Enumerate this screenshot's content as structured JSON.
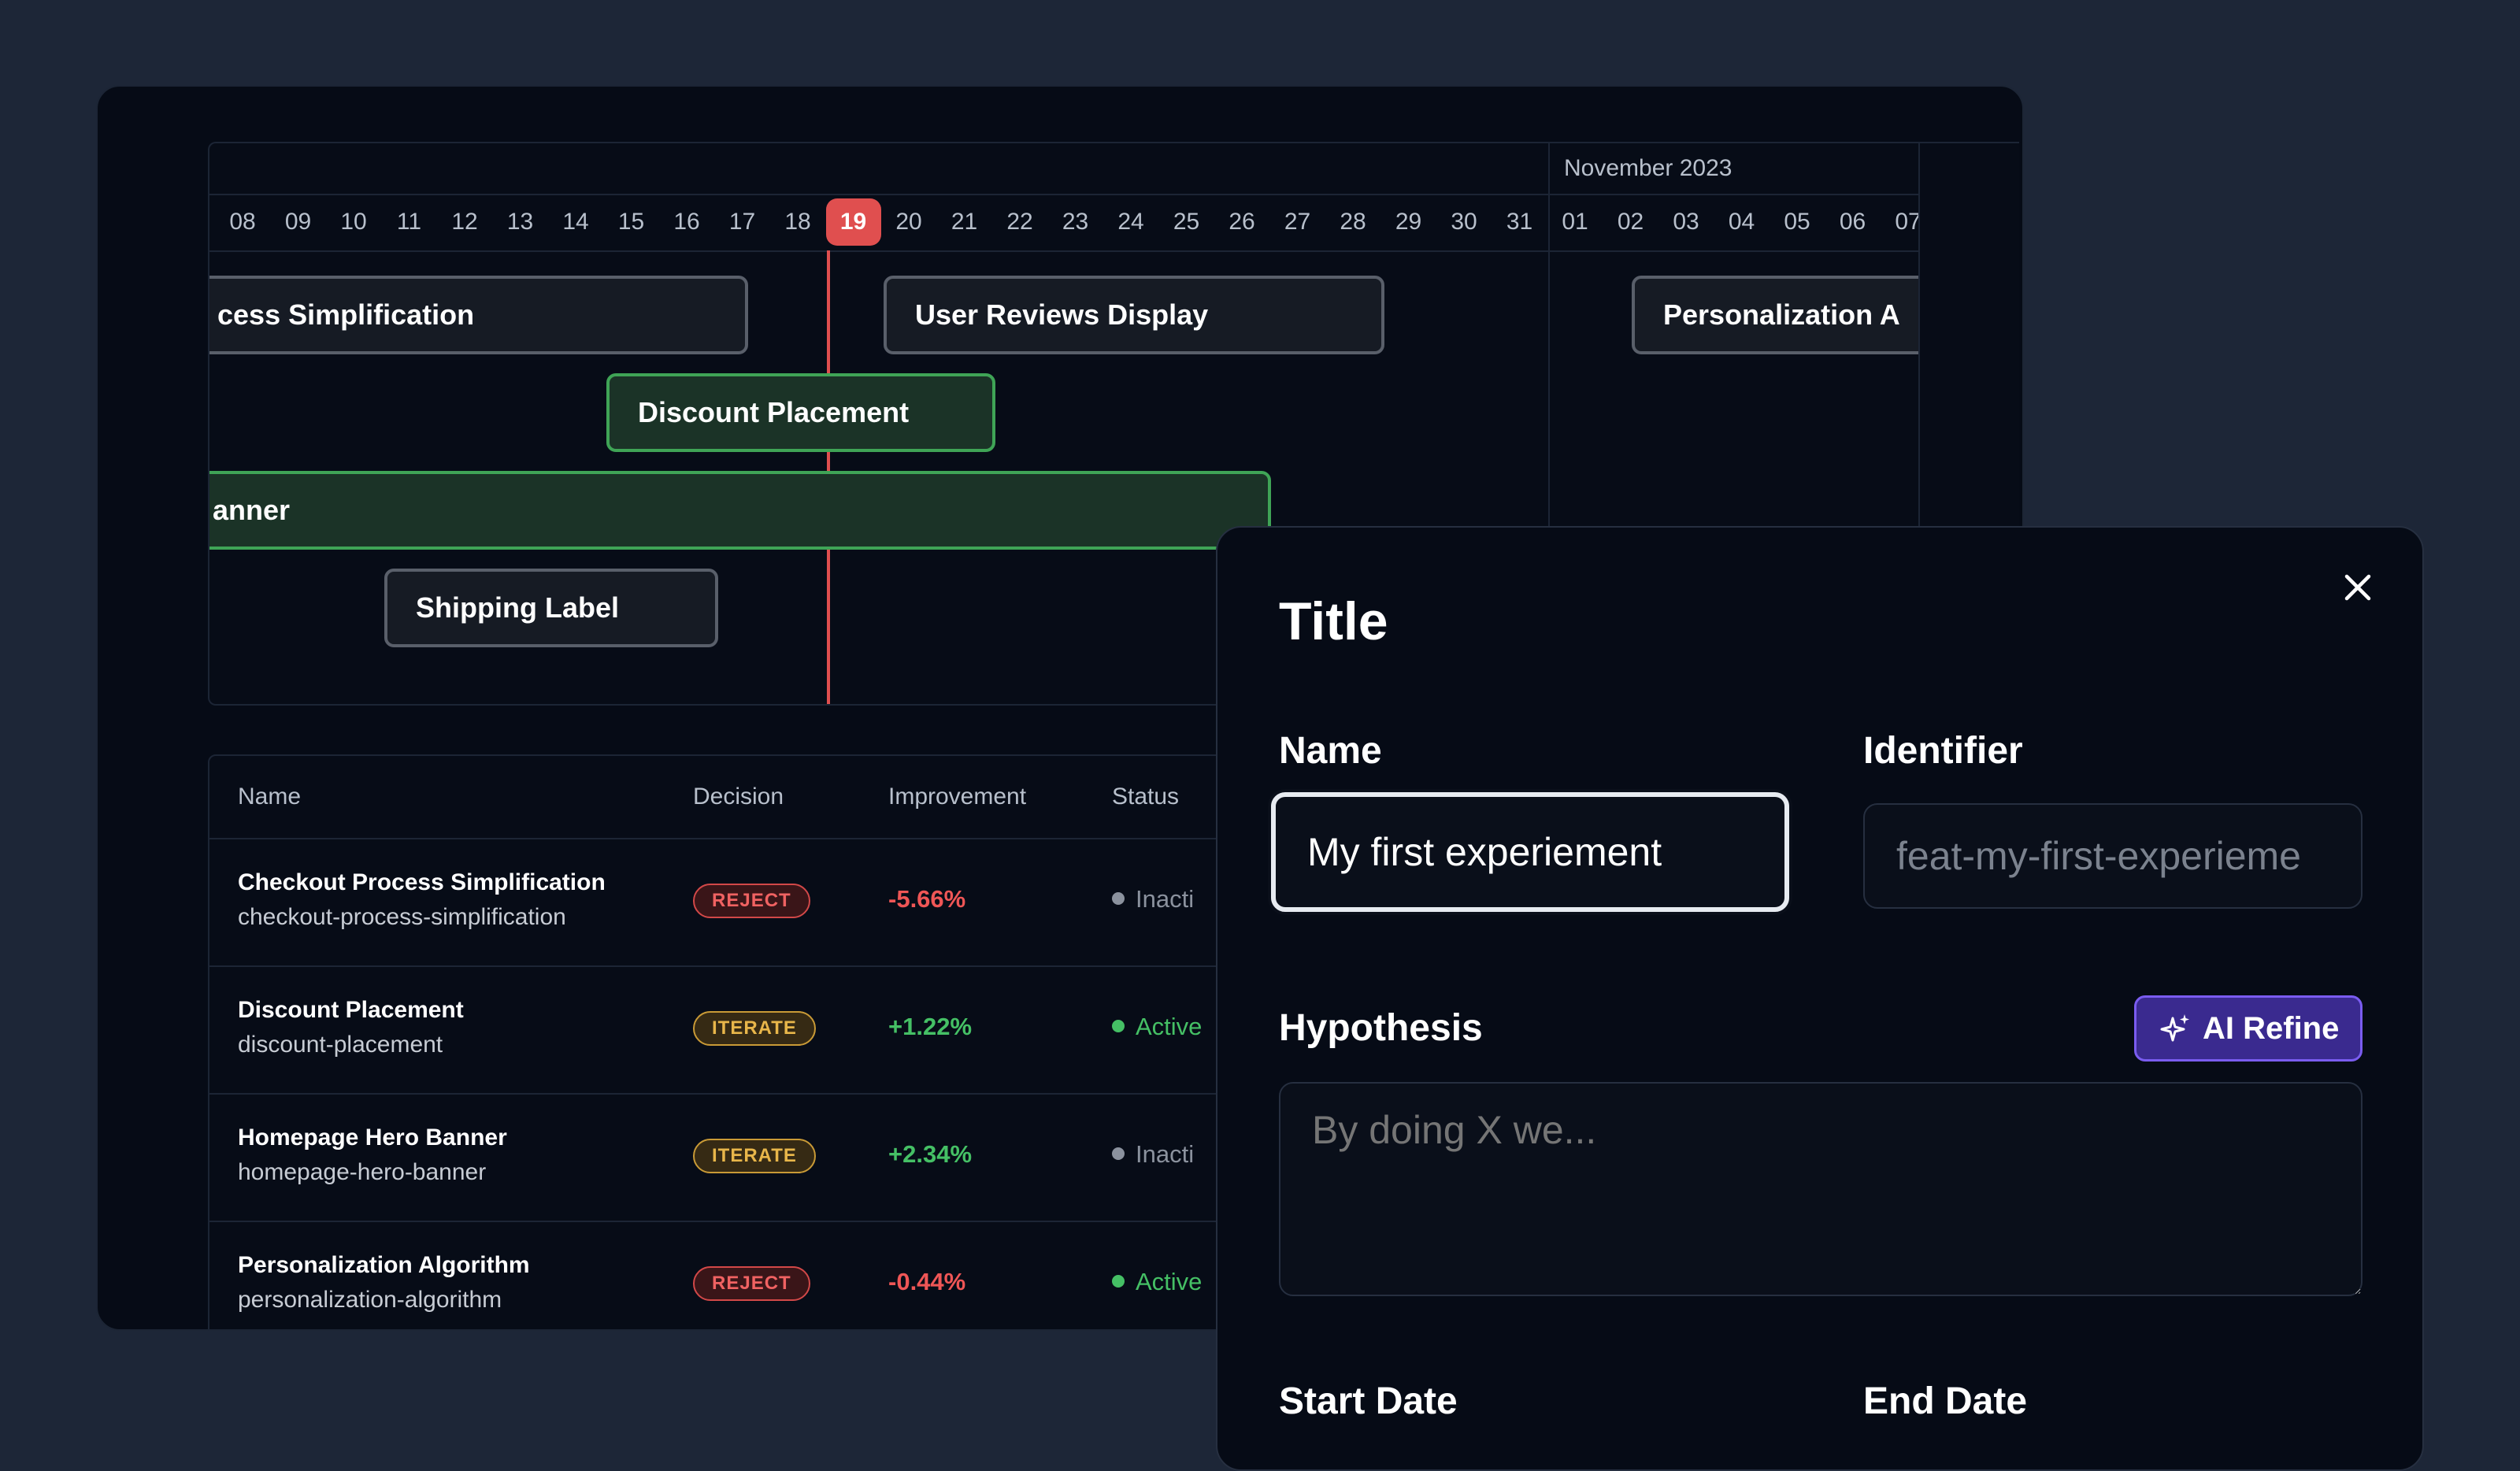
{
  "timeline": {
    "month_label": "November 2023",
    "days": [
      "08",
      "09",
      "10",
      "11",
      "12",
      "13",
      "14",
      "15",
      "16",
      "17",
      "18",
      "19",
      "20",
      "21",
      "22",
      "23",
      "24",
      "25",
      "26",
      "27",
      "28",
      "29",
      "30",
      "31",
      "01",
      "02",
      "03",
      "04",
      "05",
      "06",
      "07"
    ],
    "today": "19",
    "bars": [
      {
        "label": "cess Simplification",
        "style": "neutral"
      },
      {
        "label": "User Reviews Display",
        "style": "neutral"
      },
      {
        "label": "Personalization A",
        "style": "neutral"
      },
      {
        "label": "Discount Placement",
        "style": "green"
      },
      {
        "label": "anner",
        "style": "green"
      },
      {
        "label": "Shipping Label",
        "style": "neutral"
      }
    ]
  },
  "table": {
    "headers": {
      "name": "Name",
      "decision": "Decision",
      "improvement": "Improvement",
      "status": "Status"
    },
    "rows": [
      {
        "name": "Checkout Process Simplification",
        "slug": "checkout-process-simplification",
        "decision": "REJECT",
        "improvement": "-5.66%",
        "status": "Inacti"
      },
      {
        "name": "Discount Placement",
        "slug": "discount-placement",
        "decision": "ITERATE",
        "improvement": "+1.22%",
        "status": "Active"
      },
      {
        "name": "Homepage Hero Banner",
        "slug": "homepage-hero-banner",
        "decision": "ITERATE",
        "improvement": "+2.34%",
        "status": "Inacti"
      },
      {
        "name": "Personalization Algorithm",
        "slug": "personalization-algorithm",
        "decision": "REJECT",
        "improvement": "-0.44%",
        "status": "Active"
      }
    ]
  },
  "modal": {
    "title": "Title",
    "name_label": "Name",
    "name_value": "My first experiement",
    "identifier_label": "Identifier",
    "identifier_placeholder": "feat-my-first-experieme",
    "hypothesis_label": "Hypothesis",
    "ai_refine_label": "AI Refine",
    "hypothesis_placeholder": "By doing X we...",
    "start_date_label": "Start Date",
    "end_date_label": "End Date",
    "close_icon": "close-icon",
    "sparkle_icon": "sparkles-icon"
  },
  "colors": {
    "page_bg": "#1d2637",
    "card_bg": "#060b16",
    "today_red": "#e04f4f",
    "green": "#3fa456",
    "ai_purple": "#3a2a8f"
  }
}
